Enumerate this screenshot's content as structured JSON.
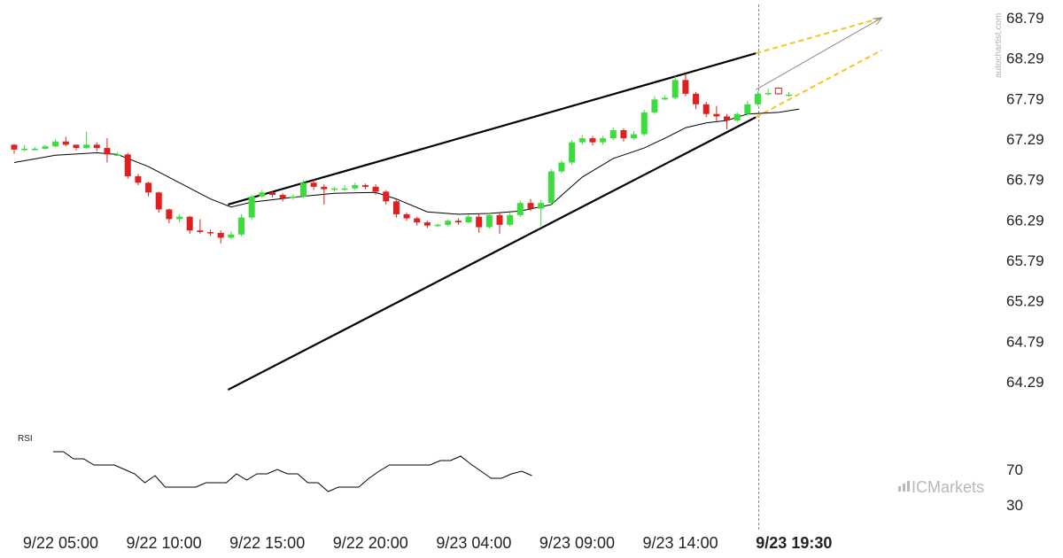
{
  "colors": {
    "up": "#3ddc3d",
    "down": "#e02020",
    "trend": "#000000",
    "projection": "#f5c518",
    "ma": "#000000",
    "rsi": "#000000",
    "arrow": "#888888"
  },
  "watermark": "autochartist.com",
  "brand": {
    "logo_text": "ICMarkets",
    "logo_icon": "bar-chart-icon"
  },
  "chart_data": {
    "type": "candlestick",
    "price_axis": {
      "labels": [
        "68.79",
        "68.29",
        "67.79",
        "67.29",
        "66.79",
        "66.29",
        "65.79",
        "65.29",
        "64.79",
        "64.29"
      ],
      "ylim": [
        63.95,
        68.9
      ]
    },
    "time_axis": [
      {
        "label": "9/22 05:00",
        "bold": false,
        "index": 4.5
      },
      {
        "label": "9/22 10:00",
        "bold": false,
        "index": 14.5
      },
      {
        "label": "9/22 15:00",
        "bold": false,
        "index": 24.5
      },
      {
        "label": "9/22 20:00",
        "bold": false,
        "index": 34.5
      },
      {
        "label": "9/23 04:00",
        "bold": false,
        "index": 44.5
      },
      {
        "label": "9/23 09:00",
        "bold": false,
        "index": 54.5
      },
      {
        "label": "9/23 14:00",
        "bold": false,
        "index": 64.5
      },
      {
        "label": "9/23 19:30",
        "bold": true,
        "index": 75.5
      }
    ],
    "candles": [
      [
        67.22,
        67.16,
        67.23,
        67.11
      ],
      [
        67.16,
        67.17,
        67.22,
        67.14
      ],
      [
        67.17,
        67.17,
        67.19,
        67.15
      ],
      [
        67.17,
        67.2,
        67.22,
        67.16
      ],
      [
        67.2,
        67.26,
        67.29,
        67.19
      ],
      [
        67.26,
        67.22,
        67.32,
        67.2
      ],
      [
        67.22,
        67.18,
        67.22,
        67.15
      ],
      [
        67.18,
        67.22,
        67.38,
        67.17
      ],
      [
        67.22,
        67.18,
        67.25,
        67.14
      ],
      [
        67.18,
        67.1,
        67.3,
        67.0
      ],
      [
        67.1,
        67.1,
        67.13,
        67.08
      ],
      [
        67.1,
        66.83,
        67.12,
        66.8
      ],
      [
        66.83,
        66.75,
        66.86,
        66.72
      ],
      [
        66.75,
        66.63,
        66.76,
        66.58
      ],
      [
        66.63,
        66.42,
        66.64,
        66.38
      ],
      [
        66.42,
        66.3,
        66.43,
        66.25
      ],
      [
        66.3,
        66.33,
        66.36,
        66.26
      ],
      [
        66.33,
        66.16,
        66.34,
        66.12
      ],
      [
        66.16,
        66.14,
        66.3,
        66.12
      ],
      [
        66.14,
        66.13,
        66.17,
        66.09
      ],
      [
        66.13,
        66.07,
        66.16,
        66.0
      ],
      [
        66.07,
        66.11,
        66.15,
        66.05
      ],
      [
        66.11,
        66.32,
        66.36,
        66.09
      ],
      [
        66.32,
        66.58,
        66.6,
        66.29
      ],
      [
        66.58,
        66.63,
        66.66,
        66.56
      ],
      [
        66.63,
        66.6,
        66.65,
        66.57
      ],
      [
        66.6,
        66.56,
        66.62,
        66.52
      ],
      [
        66.56,
        66.58,
        66.61,
        66.54
      ],
      [
        66.58,
        66.75,
        66.78,
        66.56
      ],
      [
        66.75,
        66.7,
        66.8,
        66.66
      ],
      [
        66.7,
        66.67,
        66.73,
        66.48
      ],
      [
        66.67,
        66.68,
        66.7,
        66.64
      ],
      [
        66.68,
        66.68,
        66.72,
        66.65
      ],
      [
        66.68,
        66.72,
        66.75,
        66.66
      ],
      [
        66.72,
        66.7,
        66.74,
        66.67
      ],
      [
        66.7,
        66.64,
        66.73,
        66.6
      ],
      [
        66.64,
        66.52,
        66.66,
        66.48
      ],
      [
        66.52,
        66.36,
        66.54,
        66.32
      ],
      [
        66.36,
        66.31,
        66.38,
        66.28
      ],
      [
        66.31,
        66.26,
        66.33,
        66.22
      ],
      [
        66.26,
        66.22,
        66.28,
        66.19
      ],
      [
        66.22,
        66.23,
        66.25,
        66.2
      ],
      [
        66.23,
        66.28,
        66.3,
        66.21
      ],
      [
        66.28,
        66.26,
        66.31,
        66.23
      ],
      [
        66.26,
        66.33,
        66.36,
        66.25
      ],
      [
        66.33,
        66.2,
        66.36,
        66.13
      ],
      [
        66.2,
        66.35,
        66.38,
        66.18
      ],
      [
        66.35,
        66.23,
        66.38,
        66.12
      ],
      [
        66.23,
        66.35,
        66.38,
        66.21
      ],
      [
        66.35,
        66.5,
        66.53,
        66.33
      ],
      [
        66.5,
        66.43,
        66.55,
        66.4
      ],
      [
        66.43,
        66.5,
        66.54,
        66.22
      ],
      [
        66.5,
        66.89,
        66.92,
        66.47
      ],
      [
        66.89,
        67.0,
        67.03,
        66.87
      ],
      [
        67.0,
        67.25,
        67.28,
        66.97
      ],
      [
        67.25,
        67.3,
        67.34,
        67.22
      ],
      [
        67.3,
        67.25,
        67.33,
        67.21
      ],
      [
        67.25,
        67.3,
        67.33,
        67.22
      ],
      [
        67.3,
        67.4,
        67.43,
        67.28
      ],
      [
        67.4,
        67.3,
        67.42,
        67.26
      ],
      [
        67.3,
        67.35,
        67.39,
        67.28
      ],
      [
        67.35,
        67.62,
        67.65,
        67.33
      ],
      [
        67.62,
        67.78,
        67.82,
        67.6
      ],
      [
        67.78,
        67.8,
        67.83,
        67.77
      ],
      [
        67.8,
        68.02,
        68.07,
        67.78
      ],
      [
        68.02,
        67.85,
        68.09,
        67.82
      ],
      [
        67.85,
        67.72,
        67.87,
        67.66
      ],
      [
        67.72,
        67.6,
        67.75,
        67.56
      ],
      [
        67.6,
        67.57,
        67.7,
        67.5
      ],
      [
        67.57,
        67.52,
        67.6,
        67.41
      ],
      [
        67.52,
        67.6,
        67.62,
        67.5
      ],
      [
        67.6,
        67.72,
        67.76,
        67.58
      ],
      [
        67.72,
        67.85,
        67.88,
        67.7
      ],
      [
        67.85,
        67.86,
        67.91,
        67.83
      ],
      [
        67.92,
        67.85,
        67.93,
        67.84
      ],
      [
        67.84,
        67.84,
        67.87,
        67.81
      ]
    ],
    "moving_average": [
      [
        0,
        67.0
      ],
      [
        4,
        67.09
      ],
      [
        8,
        67.12
      ],
      [
        10,
        67.1
      ],
      [
        13,
        66.95
      ],
      [
        16,
        66.75
      ],
      [
        19,
        66.55
      ],
      [
        21,
        66.45
      ],
      [
        23,
        66.51
      ],
      [
        27,
        66.57
      ],
      [
        31,
        66.62
      ],
      [
        35,
        66.63
      ],
      [
        37,
        66.55
      ],
      [
        40,
        66.39
      ],
      [
        43,
        66.36
      ],
      [
        46,
        66.37
      ],
      [
        49,
        66.4
      ],
      [
        52,
        66.48
      ],
      [
        55,
        66.82
      ],
      [
        58,
        67.05
      ],
      [
        61,
        67.18
      ],
      [
        63,
        67.3
      ],
      [
        65,
        67.43
      ],
      [
        67,
        67.49
      ],
      [
        69,
        67.52
      ],
      [
        71,
        67.6
      ],
      [
        74,
        67.62
      ],
      [
        76,
        67.66
      ]
    ],
    "pattern_lines": [
      {
        "name": "upper-trendline",
        "from": [
          20.7,
          66.48
        ],
        "to": [
          71.8,
          68.35
        ]
      },
      {
        "name": "lower-trendline",
        "from": [
          20.7,
          64.19
        ],
        "to": [
          71.8,
          67.56
        ]
      }
    ],
    "projection_lines": [
      {
        "name": "upper-projection",
        "from": [
          71.8,
          68.35
        ],
        "to": [
          84.0,
          68.79
        ]
      },
      {
        "name": "lower-projection",
        "from": [
          71.8,
          67.56
        ],
        "to": [
          84.0,
          68.39
        ]
      }
    ],
    "forecast_arrow": {
      "from": [
        71.8,
        67.9
      ],
      "to": [
        84.0,
        68.79
      ]
    },
    "current_bar_index": 72,
    "rsi": {
      "title": "RSI",
      "labels": [
        "70",
        "30"
      ],
      "ylim": [
        15,
        100
      ],
      "values": [
        90,
        90,
        82,
        82,
        75,
        75,
        75,
        70,
        65,
        55,
        63,
        50,
        50,
        50,
        50,
        55,
        55,
        55,
        65,
        58,
        65,
        65,
        70,
        65,
        65,
        55,
        55,
        45,
        50,
        50,
        50,
        60,
        68,
        75,
        75,
        75,
        75,
        75,
        80,
        80,
        85,
        76,
        68,
        60,
        60,
        65,
        68,
        63
      ]
    }
  }
}
